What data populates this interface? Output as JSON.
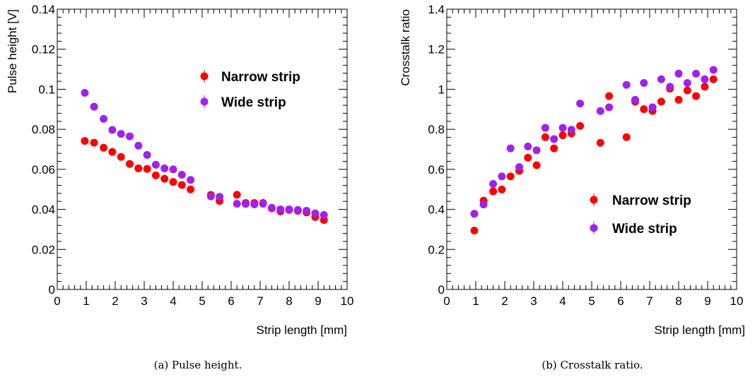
{
  "colors": {
    "narrow": "#ff0000",
    "wide": "#a020f0",
    "axis": "#000000"
  },
  "chart_data": [
    {
      "type": "scatter",
      "xlabel": "Strip length [mm]",
      "ylabel": "Pulse height [V]",
      "xlim": [
        0,
        10
      ],
      "ylim": [
        0,
        0.14
      ],
      "xticks": [
        "0",
        "1",
        "2",
        "3",
        "4",
        "5",
        "6",
        "7",
        "8",
        "9",
        "10"
      ],
      "yticks": [
        "0",
        "0.02",
        "0.04",
        "0.06",
        "0.08",
        "0.1",
        "0.12",
        "0.14"
      ],
      "legend_position": "top-right",
      "caption": "(a) Pulse height.",
      "series": [
        {
          "name": "Narrow strip",
          "color": "#ff0000",
          "x": [
            0.95,
            1.27,
            1.6,
            1.9,
            2.2,
            2.5,
            2.8,
            3.1,
            3.4,
            3.7,
            4.0,
            4.3,
            4.6,
            5.3,
            5.6,
            6.2,
            6.5,
            6.8,
            7.1,
            7.4,
            7.7,
            8.0,
            8.3,
            8.6,
            8.9,
            9.2
          ],
          "y": [
            0.0742,
            0.0733,
            0.0708,
            0.0687,
            0.0662,
            0.0627,
            0.0605,
            0.0602,
            0.057,
            0.0553,
            0.0537,
            0.0522,
            0.05,
            0.0472,
            0.0442,
            0.0473,
            0.0432,
            0.0432,
            0.0432,
            0.0405,
            0.039,
            0.0397,
            0.0393,
            0.0385,
            0.0362,
            0.0347
          ]
        },
        {
          "name": "Wide strip",
          "color": "#a020f0",
          "x": [
            0.95,
            1.27,
            1.6,
            1.9,
            2.2,
            2.5,
            2.8,
            3.1,
            3.4,
            3.7,
            4.0,
            4.3,
            4.6,
            5.3,
            5.6,
            6.2,
            6.5,
            6.8,
            7.1,
            7.4,
            7.7,
            8.0,
            8.3,
            8.6,
            8.9,
            9.2
          ],
          "y": [
            0.0982,
            0.0913,
            0.0852,
            0.0797,
            0.0777,
            0.0765,
            0.0718,
            0.0672,
            0.0623,
            0.0605,
            0.06,
            0.0573,
            0.0547,
            0.0465,
            0.0463,
            0.0428,
            0.0427,
            0.0425,
            0.0428,
            0.0408,
            0.04,
            0.04,
            0.0397,
            0.0393,
            0.038,
            0.0372
          ]
        }
      ]
    },
    {
      "type": "scatter",
      "xlabel": "Strip length [mm]",
      "ylabel": "Crosstalk ratio",
      "xlim": [
        0,
        10
      ],
      "ylim": [
        0,
        1.5
      ],
      "xticks": [
        "0",
        "1",
        "2",
        "3",
        "4",
        "5",
        "6",
        "7",
        "8",
        "9",
        "10"
      ],
      "yticks": [
        "0",
        "0.2",
        "0.4",
        "0.6",
        "0.8",
        "1",
        "1.2",
        "1.4"
      ],
      "legend_position": "bottom-right",
      "caption": "(b) Crosstalk ratio.",
      "series": [
        {
          "name": "Narrow strip",
          "color": "#ff0000",
          "x": [
            0.95,
            1.27,
            1.6,
            1.9,
            2.2,
            2.5,
            2.8,
            3.1,
            3.4,
            3.7,
            4.0,
            4.3,
            4.6,
            5.3,
            5.6,
            6.2,
            6.5,
            6.8,
            7.1,
            7.4,
            7.7,
            8.0,
            8.3,
            8.6,
            8.9,
            9.2
          ],
          "y": [
            0.315,
            0.475,
            0.525,
            0.535,
            0.605,
            0.635,
            0.705,
            0.665,
            0.815,
            0.755,
            0.825,
            0.835,
            0.875,
            0.785,
            1.035,
            0.815,
            1.005,
            0.965,
            0.955,
            1.005,
            1.075,
            1.015,
            1.065,
            1.035,
            1.085,
            1.125
          ]
        },
        {
          "name": "Wide strip",
          "color": "#a020f0",
          "x": [
            0.95,
            1.27,
            1.6,
            1.9,
            2.2,
            2.5,
            2.8,
            3.1,
            3.4,
            3.7,
            4.0,
            4.3,
            4.6,
            5.3,
            5.6,
            6.2,
            6.5,
            6.8,
            7.1,
            7.4,
            7.7,
            8.0,
            8.3,
            8.6,
            8.9,
            9.2
          ],
          "y": [
            0.405,
            0.455,
            0.565,
            0.605,
            0.755,
            0.655,
            0.765,
            0.745,
            0.865,
            0.805,
            0.865,
            0.855,
            0.995,
            0.955,
            0.975,
            1.095,
            1.015,
            1.105,
            0.975,
            1.125,
            1.085,
            1.155,
            1.105,
            1.155,
            1.125,
            1.175
          ]
        }
      ]
    }
  ]
}
